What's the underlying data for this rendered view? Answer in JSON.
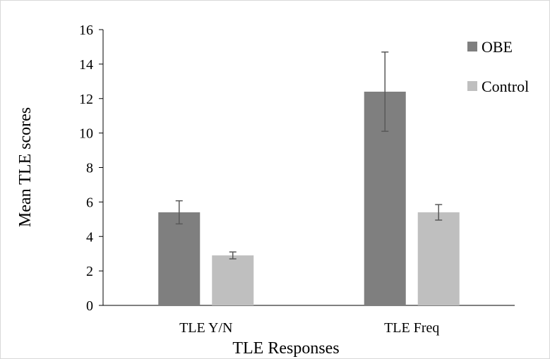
{
  "chart_data": {
    "type": "bar",
    "title": "",
    "xlabel": "TLE Responses",
    "ylabel": "Mean TLE scores",
    "categories": [
      "TLE Y/N",
      "TLE Freq"
    ],
    "ylim": [
      0,
      16
    ],
    "yticks": [
      0,
      2,
      4,
      6,
      8,
      10,
      12,
      14,
      16
    ],
    "ytick_labels": [
      "0",
      "2",
      "4",
      "6",
      "8",
      "10",
      "12",
      "14",
      "16"
    ],
    "grid": false,
    "legend_position": "right",
    "series": [
      {
        "name": "OBE",
        "color": "#7f7f7f",
        "values": [
          5.4,
          12.4
        ],
        "error": [
          0.67,
          2.3
        ]
      },
      {
        "name": "Control",
        "color": "#bfbfbf",
        "values": [
          2.9,
          5.4
        ],
        "error": [
          0.2,
          0.45
        ]
      }
    ],
    "error_bar_color": "#595959"
  }
}
